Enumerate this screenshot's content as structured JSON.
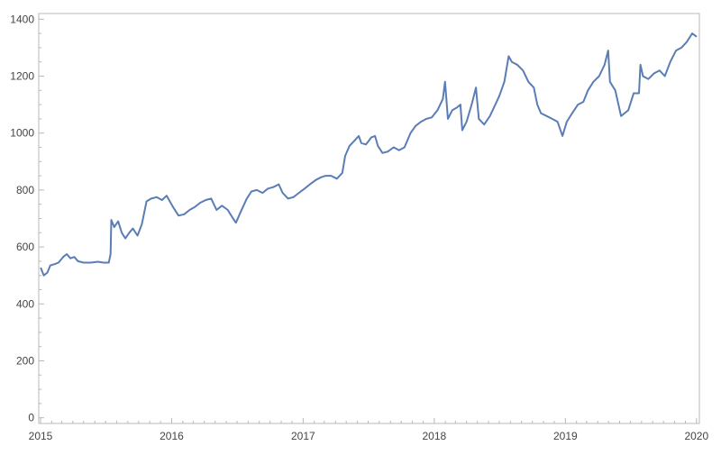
{
  "chart_data": {
    "type": "line",
    "title": "",
    "xlabel": "",
    "ylabel": "",
    "xlim": [
      "2014-12-27",
      "2020-01-09"
    ],
    "ylim": [
      -20,
      1420
    ],
    "x_ticks": [
      "2015",
      "2016",
      "2017",
      "2018",
      "2019",
      "2020"
    ],
    "y_ticks": [
      0,
      200,
      400,
      600,
      800,
      1000,
      1200,
      1400
    ],
    "grid": false,
    "legend": "none",
    "series": [
      {
        "color": "#5a7db5",
        "points": [
          [
            "2015-01-02",
            525
          ],
          [
            "2015-01-10",
            500
          ],
          [
            "2015-01-20",
            510
          ],
          [
            "2015-01-28",
            535
          ],
          [
            "2015-02-10",
            540
          ],
          [
            "2015-02-20",
            545
          ],
          [
            "2015-03-05",
            565
          ],
          [
            "2015-03-15",
            575
          ],
          [
            "2015-03-25",
            560
          ],
          [
            "2015-04-05",
            565
          ],
          [
            "2015-04-15",
            550
          ],
          [
            "2015-05-01",
            545
          ],
          [
            "2015-05-20",
            545
          ],
          [
            "2015-06-10",
            548
          ],
          [
            "2015-06-25",
            545
          ],
          [
            "2015-07-10",
            545
          ],
          [
            "2015-07-15",
            575
          ],
          [
            "2015-07-17",
            695
          ],
          [
            "2015-07-25",
            670
          ],
          [
            "2015-08-05",
            690
          ],
          [
            "2015-08-15",
            650
          ],
          [
            "2015-08-25",
            630
          ],
          [
            "2015-09-05",
            650
          ],
          [
            "2015-09-15",
            665
          ],
          [
            "2015-09-28",
            640
          ],
          [
            "2015-10-10",
            680
          ],
          [
            "2015-10-23",
            760
          ],
          [
            "2015-11-05",
            770
          ],
          [
            "2015-11-20",
            775
          ],
          [
            "2015-12-05",
            765
          ],
          [
            "2015-12-18",
            780
          ],
          [
            "2016-01-05",
            740
          ],
          [
            "2016-01-20",
            710
          ],
          [
            "2016-02-05",
            715
          ],
          [
            "2016-02-20",
            730
          ],
          [
            "2016-03-05",
            740
          ],
          [
            "2016-03-20",
            755
          ],
          [
            "2016-04-05",
            765
          ],
          [
            "2016-04-20",
            770
          ],
          [
            "2016-05-05",
            730
          ],
          [
            "2016-05-20",
            745
          ],
          [
            "2016-06-05",
            730
          ],
          [
            "2016-06-20",
            700
          ],
          [
            "2016-06-28",
            685
          ],
          [
            "2016-07-10",
            720
          ],
          [
            "2016-07-28",
            770
          ],
          [
            "2016-08-10",
            795
          ],
          [
            "2016-08-25",
            800
          ],
          [
            "2016-09-10",
            790
          ],
          [
            "2016-09-25",
            805
          ],
          [
            "2016-10-10",
            810
          ],
          [
            "2016-10-25",
            820
          ],
          [
            "2016-11-05",
            790
          ],
          [
            "2016-11-20",
            770
          ],
          [
            "2016-12-05",
            775
          ],
          [
            "2016-12-20",
            790
          ],
          [
            "2017-01-05",
            805
          ],
          [
            "2017-01-20",
            820
          ],
          [
            "2017-02-05",
            835
          ],
          [
            "2017-02-20",
            845
          ],
          [
            "2017-03-05",
            850
          ],
          [
            "2017-03-20",
            850
          ],
          [
            "2017-04-05",
            840
          ],
          [
            "2017-04-20",
            860
          ],
          [
            "2017-04-28",
            920
          ],
          [
            "2017-05-10",
            955
          ],
          [
            "2017-05-25",
            975
          ],
          [
            "2017-06-05",
            990
          ],
          [
            "2017-06-12",
            965
          ],
          [
            "2017-06-25",
            960
          ],
          [
            "2017-07-10",
            985
          ],
          [
            "2017-07-20",
            990
          ],
          [
            "2017-07-28",
            955
          ],
          [
            "2017-08-10",
            930
          ],
          [
            "2017-08-25",
            935
          ],
          [
            "2017-09-10",
            950
          ],
          [
            "2017-09-25",
            940
          ],
          [
            "2017-10-10",
            950
          ],
          [
            "2017-10-27",
            1000
          ],
          [
            "2017-11-10",
            1025
          ],
          [
            "2017-11-25",
            1040
          ],
          [
            "2017-12-10",
            1050
          ],
          [
            "2017-12-25",
            1055
          ],
          [
            "2018-01-10",
            1080
          ],
          [
            "2018-01-25",
            1120
          ],
          [
            "2018-01-31",
            1180
          ],
          [
            "2018-02-08",
            1050
          ],
          [
            "2018-02-20",
            1080
          ],
          [
            "2018-03-05",
            1090
          ],
          [
            "2018-03-15",
            1100
          ],
          [
            "2018-03-20",
            1010
          ],
          [
            "2018-04-01",
            1040
          ],
          [
            "2018-04-15",
            1100
          ],
          [
            "2018-04-27",
            1160
          ],
          [
            "2018-05-05",
            1050
          ],
          [
            "2018-05-20",
            1030
          ],
          [
            "2018-06-05",
            1060
          ],
          [
            "2018-06-20",
            1100
          ],
          [
            "2018-07-01",
            1130
          ],
          [
            "2018-07-15",
            1180
          ],
          [
            "2018-07-27",
            1270
          ],
          [
            "2018-08-05",
            1250
          ],
          [
            "2018-08-20",
            1240
          ],
          [
            "2018-09-05",
            1220
          ],
          [
            "2018-09-20",
            1180
          ],
          [
            "2018-10-05",
            1160
          ],
          [
            "2018-10-15",
            1100
          ],
          [
            "2018-10-25",
            1070
          ],
          [
            "2018-11-10",
            1060
          ],
          [
            "2018-11-25",
            1050
          ],
          [
            "2018-12-10",
            1040
          ],
          [
            "2018-12-24",
            990
          ],
          [
            "2019-01-05",
            1040
          ],
          [
            "2019-01-20",
            1070
          ],
          [
            "2019-02-05",
            1100
          ],
          [
            "2019-02-20",
            1110
          ],
          [
            "2019-03-05",
            1150
          ],
          [
            "2019-03-20",
            1180
          ],
          [
            "2019-04-05",
            1200
          ],
          [
            "2019-04-20",
            1240
          ],
          [
            "2019-04-30",
            1290
          ],
          [
            "2019-05-05",
            1180
          ],
          [
            "2019-05-20",
            1150
          ],
          [
            "2019-06-05",
            1060
          ],
          [
            "2019-06-15",
            1070
          ],
          [
            "2019-06-25",
            1080
          ],
          [
            "2019-07-10",
            1140
          ],
          [
            "2019-07-25",
            1140
          ],
          [
            "2019-07-29",
            1240
          ],
          [
            "2019-08-05",
            1200
          ],
          [
            "2019-08-20",
            1190
          ],
          [
            "2019-09-05",
            1210
          ],
          [
            "2019-09-20",
            1220
          ],
          [
            "2019-10-05",
            1200
          ],
          [
            "2019-10-20",
            1250
          ],
          [
            "2019-11-05",
            1290
          ],
          [
            "2019-11-20",
            1300
          ],
          [
            "2019-12-05",
            1320
          ],
          [
            "2019-12-20",
            1350
          ],
          [
            "2019-12-31",
            1340
          ]
        ]
      }
    ]
  }
}
